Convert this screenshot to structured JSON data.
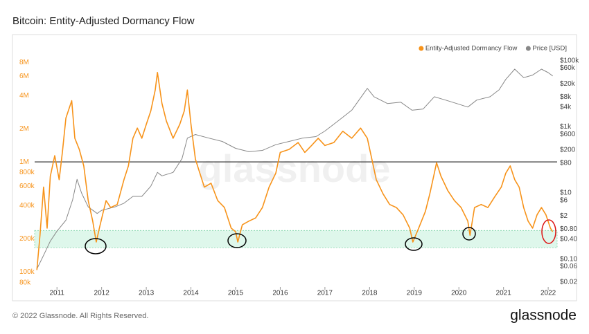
{
  "chart_data": {
    "type": "line",
    "title": "Bitcoin: Entity-Adjusted Dormancy Flow",
    "watermark": "glassnode",
    "footer": "© 2022 Glassnode. All Rights Reserved.",
    "brand": "glassnode",
    "log_scale": true,
    "xlim": [
      2010.5,
      2022.2
    ],
    "xticks": [
      2011,
      2012,
      2013,
      2014,
      2015,
      2016,
      2017,
      2018,
      2019,
      2020,
      2021,
      2022
    ],
    "ylim": [
      73000,
      9300000
    ],
    "yticks": [
      {
        "value": 80000,
        "label": "80k"
      },
      {
        "value": 100000,
        "label": "100k"
      },
      {
        "value": 200000,
        "label": "200k"
      },
      {
        "value": 400000,
        "label": "400k"
      },
      {
        "value": 600000,
        "label": "600k"
      },
      {
        "value": 800000,
        "label": "800k"
      },
      {
        "value": 1000000,
        "label": "1M"
      },
      {
        "value": 2000000,
        "label": "2M"
      },
      {
        "value": 4000000,
        "label": "4M"
      },
      {
        "value": 6000000,
        "label": "6M"
      },
      {
        "value": 8000000,
        "label": "8M"
      }
    ],
    "y2lim": [
      0.0143,
      147000
    ],
    "y2ticks": [
      {
        "value": 0.02,
        "label": "$0.02"
      },
      {
        "value": 0.06,
        "label": "$0.06"
      },
      {
        "value": 0.1,
        "label": "$0.10"
      },
      {
        "value": 0.4,
        "label": "$0.40"
      },
      {
        "value": 0.8,
        "label": "$0.80"
      },
      {
        "value": 2,
        "label": "$2"
      },
      {
        "value": 6,
        "label": "$6"
      },
      {
        "value": 10,
        "label": "$10"
      },
      {
        "value": 80,
        "label": "$80"
      },
      {
        "value": 200,
        "label": "$200"
      },
      {
        "value": 600,
        "label": "$600"
      },
      {
        "value": 1000,
        "label": "$1k"
      },
      {
        "value": 4000,
        "label": "$4k"
      },
      {
        "value": 8000,
        "label": "$8k"
      },
      {
        "value": 20000,
        "label": "$20k"
      },
      {
        "value": 60000,
        "label": "$60k"
      },
      {
        "value": 100000,
        "label": "$100k"
      }
    ],
    "reference_line": 1000000,
    "band": [
      166000,
      238000
    ],
    "series": [
      {
        "name": "Entity-Adjusted Dormancy Flow",
        "color": "#f7931a",
        "axis": "y",
        "x": [
          2010.55,
          2010.62,
          2010.7,
          2010.78,
          2010.85,
          2010.95,
          2011.05,
          2011.12,
          2011.2,
          2011.33,
          2011.4,
          2011.5,
          2011.6,
          2011.7,
          2011.8,
          2011.88,
          2011.95,
          2012.02,
          2012.1,
          2012.2,
          2012.35,
          2012.5,
          2012.6,
          2012.7,
          2012.8,
          2012.9,
          2013.0,
          2013.1,
          2013.2,
          2013.25,
          2013.35,
          2013.45,
          2013.6,
          2013.75,
          2013.85,
          2013.92,
          2014.0,
          2014.1,
          2014.2,
          2014.3,
          2014.45,
          2014.6,
          2014.75,
          2014.9,
          2015.0,
          2015.05,
          2015.15,
          2015.3,
          2015.45,
          2015.6,
          2015.75,
          2015.9,
          2016.0,
          2016.2,
          2016.4,
          2016.55,
          2016.7,
          2016.85,
          2017.0,
          2017.2,
          2017.4,
          2017.6,
          2017.8,
          2017.95,
          2018.05,
          2018.15,
          2018.3,
          2018.45,
          2018.6,
          2018.75,
          2018.9,
          2018.97,
          2019.1,
          2019.25,
          2019.35,
          2019.45,
          2019.5,
          2019.6,
          2019.75,
          2019.9,
          2020.05,
          2020.2,
          2020.25,
          2020.35,
          2020.5,
          2020.65,
          2020.8,
          2020.95,
          2021.05,
          2021.15,
          2021.25,
          2021.35,
          2021.45,
          2021.55,
          2021.65,
          2021.75,
          2021.85,
          2021.95,
          2022.05,
          2022.1
        ],
        "values": [
          104000,
          215000,
          590000,
          250000,
          740000,
          1140000,
          690000,
          1220000,
          2500000,
          3600000,
          1640000,
          1300000,
          920000,
          445000,
          290000,
          187000,
          250000,
          330000,
          445000,
          385000,
          410000,
          690000,
          920000,
          1640000,
          2030000,
          1640000,
          2190000,
          2900000,
          4500000,
          6500000,
          3400000,
          2350000,
          1640000,
          2190000,
          2900000,
          4500000,
          2190000,
          1060000,
          790000,
          590000,
          640000,
          445000,
          385000,
          250000,
          232000,
          187000,
          268000,
          290000,
          310000,
          385000,
          590000,
          790000,
          1220000,
          1300000,
          1500000,
          1220000,
          1410000,
          1640000,
          1410000,
          1500000,
          1900000,
          1640000,
          2030000,
          1640000,
          1060000,
          690000,
          513000,
          410000,
          385000,
          330000,
          250000,
          187000,
          250000,
          355000,
          513000,
          790000,
          985000,
          740000,
          550000,
          445000,
          385000,
          290000,
          215000,
          385000,
          410000,
          385000,
          480000,
          590000,
          790000,
          920000,
          690000,
          590000,
          385000,
          290000,
          250000,
          330000,
          385000,
          330000,
          250000,
          232000
        ]
      },
      {
        "name": "Price [USD]",
        "color": "#888888",
        "axis": "y2",
        "x": [
          2010.55,
          2010.7,
          2010.85,
          2011.0,
          2011.2,
          2011.35,
          2011.45,
          2011.55,
          2011.7,
          2011.9,
          2012.0,
          2012.3,
          2012.5,
          2012.7,
          2012.9,
          2013.1,
          2013.25,
          2013.35,
          2013.6,
          2013.8,
          2013.92,
          2014.1,
          2014.4,
          2014.7,
          2015.0,
          2015.3,
          2015.6,
          2015.9,
          2016.2,
          2016.5,
          2016.8,
          2017.0,
          2017.3,
          2017.6,
          2017.95,
          2018.1,
          2018.4,
          2018.7,
          2018.95,
          2019.2,
          2019.45,
          2019.7,
          2019.95,
          2020.2,
          2020.4,
          2020.7,
          2020.9,
          2021.05,
          2021.25,
          2021.45,
          2021.65,
          2021.85,
          2022.0,
          2022.1
        ],
        "values": [
          0.05,
          0.13,
          0.35,
          0.7,
          1.5,
          6.2,
          26,
          10,
          3.8,
          2.4,
          3.0,
          3.8,
          4.9,
          7.9,
          7.9,
          16,
          42,
          33,
          42,
          110,
          460,
          590,
          460,
          365,
          225,
          178,
          195,
          290,
          365,
          460,
          510,
          750,
          1540,
          3200,
          14700,
          8200,
          5100,
          5600,
          3200,
          3500,
          8200,
          6500,
          5100,
          4000,
          6500,
          8200,
          13300,
          27500,
          56000,
          31000,
          37000,
          56000,
          44000,
          35000
        ]
      }
    ]
  }
}
